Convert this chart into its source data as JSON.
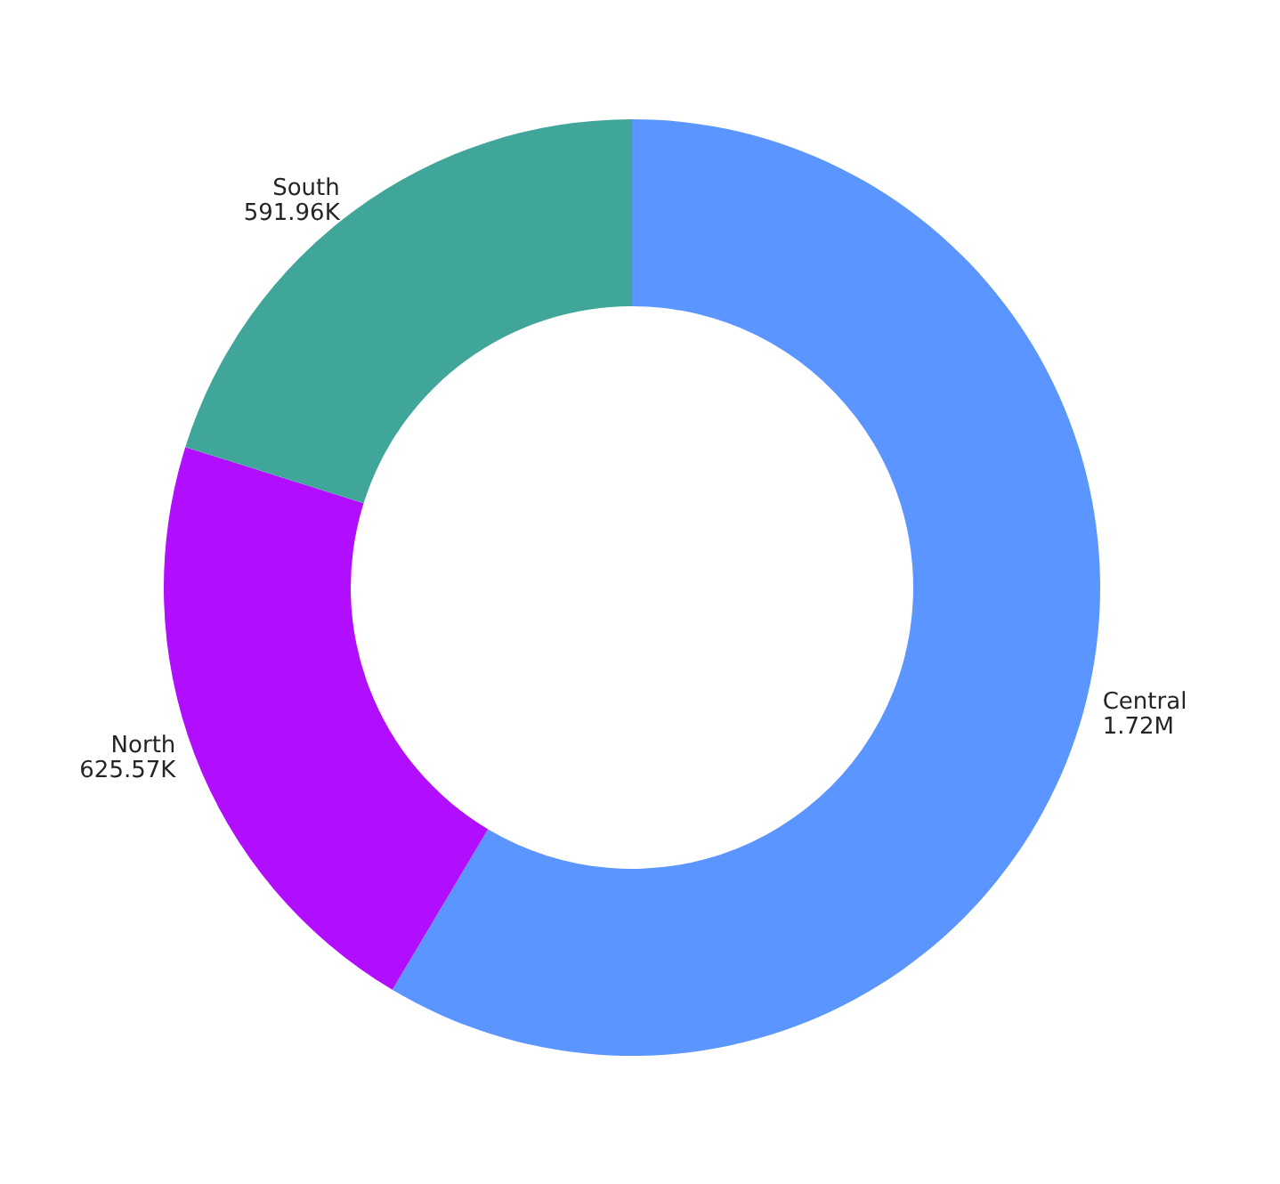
{
  "chart_data": {
    "type": "donut",
    "categories": [
      "Central",
      "North",
      "South"
    ],
    "values": [
      1720000,
      625570,
      591960
    ],
    "value_labels": [
      "1.72M",
      "625.57K",
      "591.96K"
    ],
    "colors": [
      "#5b95ff",
      "#b10dff",
      "#41a69a"
    ]
  }
}
